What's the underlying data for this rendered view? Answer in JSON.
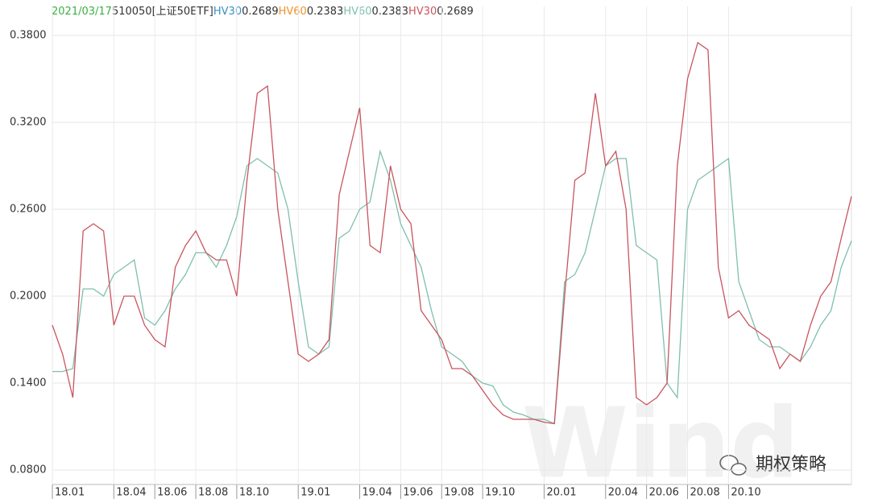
{
  "chart_data": {
    "type": "line",
    "header": {
      "date": "2021/03/17",
      "date_color": "#3cb043",
      "code": "510050[上证50ETF]",
      "items": [
        {
          "name": "HV30",
          "color": "#3a8fc4",
          "value": 0.2689
        },
        {
          "name": "HV60",
          "color": "#f0902a",
          "value": 0.2383
        }
      ]
    },
    "categories": [
      "18.01",
      null,
      null,
      null,
      null,
      null,
      "18.04",
      null,
      null,
      null,
      "18.06",
      null,
      null,
      null,
      "18.08",
      null,
      null,
      null,
      "18.10",
      null,
      null,
      null,
      null,
      null,
      "19.01",
      null,
      null,
      null,
      null,
      null,
      "19.04",
      null,
      null,
      null,
      "19.06",
      null,
      null,
      null,
      "19.08",
      null,
      null,
      null,
      "19.10",
      null,
      null,
      null,
      null,
      null,
      "20.01",
      null,
      null,
      null,
      null,
      null,
      "20.04",
      null,
      null,
      null,
      "20.06",
      null,
      null,
      null,
      "20.08",
      null,
      null,
      null,
      "20.10",
      null,
      null,
      null,
      null,
      null,
      null,
      null,
      null,
      null,
      null,
      null,
      null
    ],
    "series": [
      {
        "name": "HV30",
        "color": "#c9545e",
        "values": [
          0.18,
          0.16,
          0.13,
          0.245,
          0.25,
          0.245,
          0.18,
          0.2,
          0.2,
          0.18,
          0.17,
          0.165,
          0.22,
          0.235,
          0.245,
          0.23,
          0.225,
          0.225,
          0.2,
          0.28,
          0.34,
          0.345,
          0.26,
          0.21,
          0.16,
          0.155,
          0.16,
          0.17,
          0.27,
          0.3,
          0.33,
          0.235,
          0.23,
          0.29,
          0.26,
          0.25,
          0.19,
          0.18,
          0.17,
          0.15,
          0.15,
          0.145,
          0.135,
          0.125,
          0.118,
          0.115,
          0.115,
          0.115,
          0.113,
          0.112,
          0.2,
          0.28,
          0.285,
          0.34,
          0.29,
          0.3,
          0.26,
          0.13,
          0.125,
          0.13,
          0.14,
          0.29,
          0.35,
          0.375,
          0.37,
          0.22,
          0.185,
          0.19,
          0.18,
          0.175,
          0.17,
          0.15,
          0.16,
          0.155,
          0.18,
          0.2,
          0.21,
          0.24,
          0.2689
        ]
      },
      {
        "name": "HV60",
        "color": "#7fbfae",
        "values": [
          0.148,
          0.148,
          0.15,
          0.205,
          0.205,
          0.2,
          0.215,
          0.22,
          0.225,
          0.185,
          0.18,
          0.19,
          0.205,
          0.215,
          0.23,
          0.23,
          0.22,
          0.235,
          0.255,
          0.29,
          0.295,
          0.29,
          0.285,
          0.26,
          0.21,
          0.165,
          0.16,
          0.165,
          0.24,
          0.245,
          0.26,
          0.265,
          0.3,
          0.28,
          0.25,
          0.235,
          0.22,
          0.19,
          0.165,
          0.16,
          0.155,
          0.145,
          0.14,
          0.138,
          0.125,
          0.12,
          0.118,
          0.115,
          0.115,
          0.112,
          0.21,
          0.215,
          0.23,
          0.26,
          0.29,
          0.295,
          0.295,
          0.235,
          0.23,
          0.225,
          0.14,
          0.13,
          0.26,
          0.28,
          0.285,
          0.29,
          0.295,
          0.21,
          0.19,
          0.17,
          0.165,
          0.165,
          0.16,
          0.155,
          0.165,
          0.18,
          0.19,
          0.22,
          0.2383
        ]
      }
    ],
    "ylim": [
      0.07,
      0.4
    ],
    "yticks": [
      {
        "value": 0.08,
        "label": "0.0800"
      },
      {
        "value": 0.14,
        "label": "0.1400"
      },
      {
        "value": 0.2,
        "label": "0.2000"
      },
      {
        "value": 0.26,
        "label": "0.2600"
      },
      {
        "value": 0.32,
        "label": "0.3200"
      },
      {
        "value": 0.38,
        "label": "0.3800"
      }
    ],
    "grid": true,
    "watermark": "Wind",
    "source": "期权策略"
  }
}
